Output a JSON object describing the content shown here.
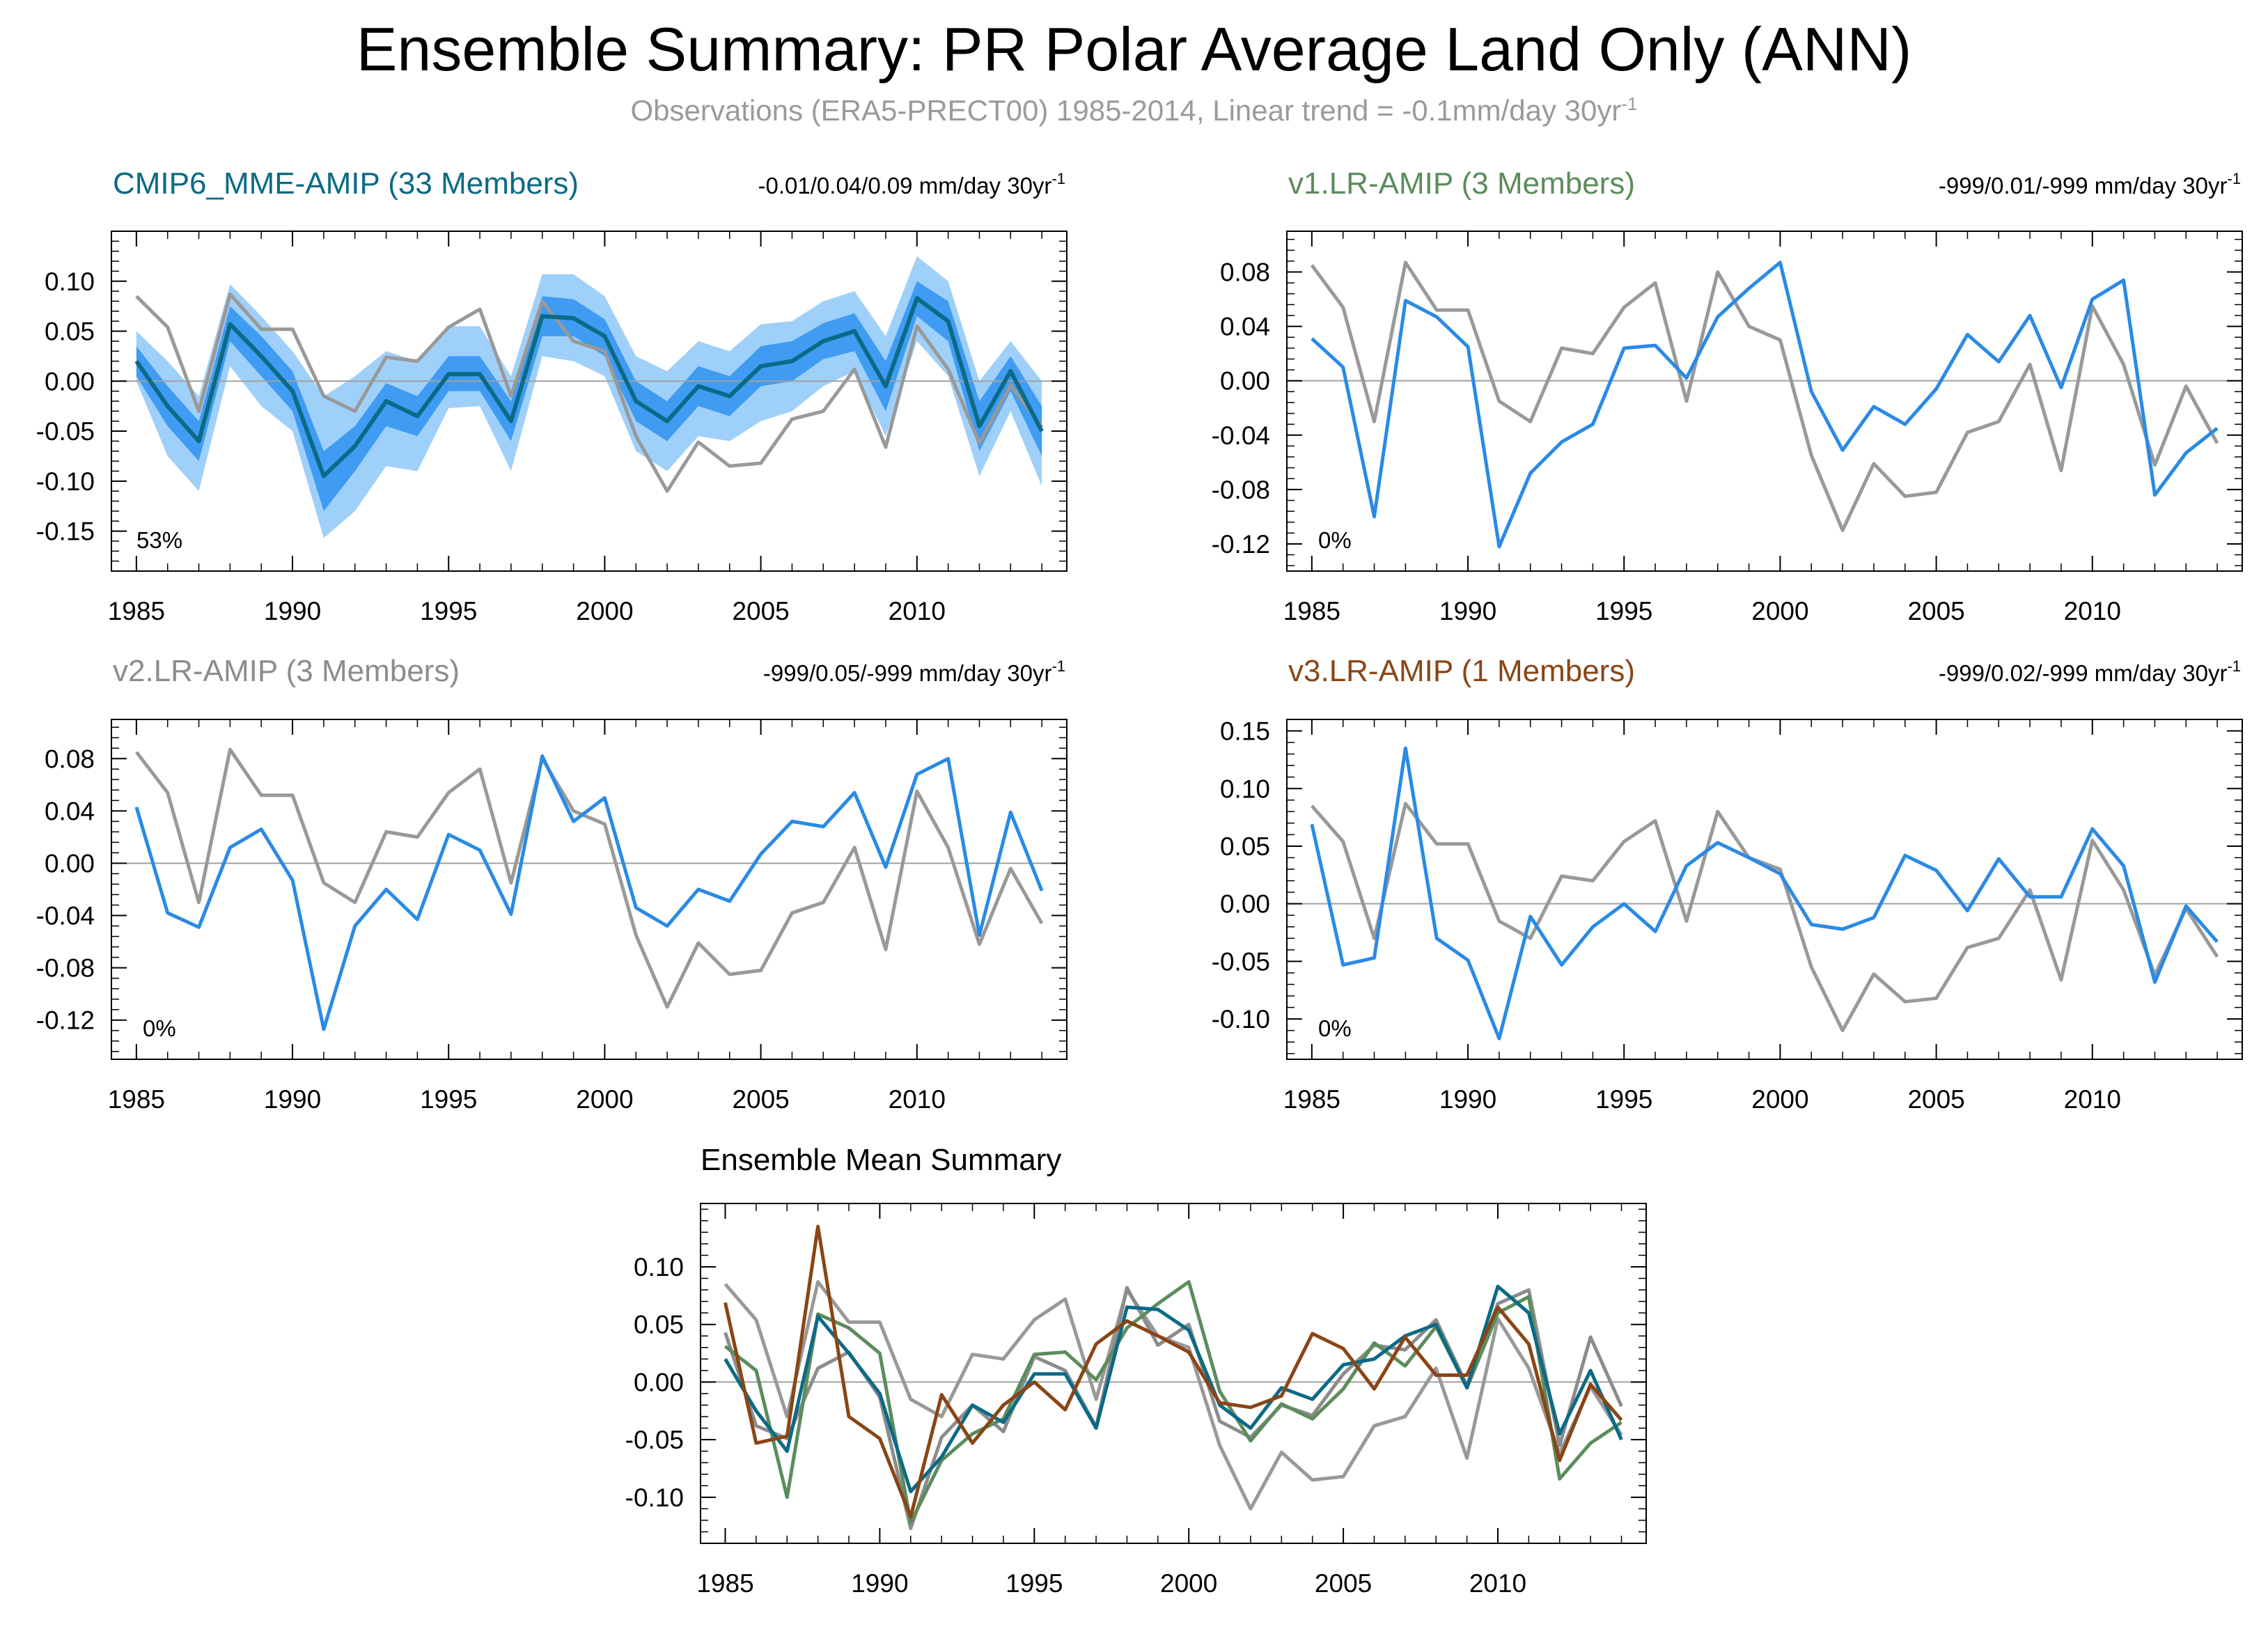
{
  "title": "Ensemble Summary: PR Polar Average Land Only (ANN)",
  "subtitle": {
    "text": "Observations (ERA5-PRECT00) 1985-2014, Linear trend = -0.1mm/day 30yr",
    "sup": "-1"
  },
  "colors": {
    "obs": "#999999",
    "model_line": "#2a8ae6",
    "band_outer": "#9fd0fa",
    "band_inner": "#3f9cf2",
    "cmip6": "#0b6a86",
    "v1": "#5c8c5c",
    "v2": "#8c8c8c",
    "v3": "#8a4515"
  },
  "years": [
    1985,
    1986,
    1987,
    1988,
    1989,
    1990,
    1991,
    1992,
    1993,
    1994,
    1995,
    1996,
    1997,
    1998,
    1999,
    2000,
    2001,
    2002,
    2003,
    2004,
    2005,
    2006,
    2007,
    2008,
    2009,
    2010,
    2011,
    2012,
    2013,
    2014
  ],
  "chart_data": [
    {
      "type": "line",
      "title": "CMIP6_MME-AMIP (33 Members)",
      "trend": "-0.01/0.04/0.09 mm/day 30yr",
      "trend_sup": "-1",
      "percent": "53%",
      "ylim": [
        -0.19,
        0.15
      ],
      "yticks": [
        "0.10",
        "0.05",
        "0.00",
        "-0.05",
        "-0.10",
        "-0.15"
      ],
      "xticks": [
        "1985",
        "1990",
        "1995",
        "2000",
        "2005",
        "2010"
      ],
      "series": [
        {
          "name": "ERA5-PRECT00",
          "values": [
            0.085,
            0.054,
            -0.03,
            0.087,
            0.052,
            0.052,
            -0.015,
            -0.03,
            0.024,
            0.02,
            0.054,
            0.072,
            -0.015,
            0.08,
            0.04,
            0.03,
            -0.055,
            -0.11,
            -0.061,
            -0.085,
            -0.082,
            -0.038,
            -0.03,
            0.012,
            -0.066,
            0.055,
            0.012,
            -0.062,
            -0.004,
            -0.046
          ]
        },
        {
          "name": "ensemble mean",
          "values": [
            0.02,
            -0.025,
            -0.06,
            0.057,
            0.025,
            -0.01,
            -0.095,
            -0.065,
            -0.02,
            -0.035,
            0.007,
            0.007,
            -0.04,
            0.065,
            0.063,
            0.045,
            -0.02,
            -0.04,
            -0.005,
            -0.015,
            0.015,
            0.02,
            0.04,
            0.05,
            -0.005,
            0.083,
            0.06,
            -0.045,
            0.01,
            -0.05
          ]
        }
      ],
      "band_outer": {
        "upper": [
          0.05,
          0.02,
          -0.015,
          0.097,
          0.065,
          0.03,
          -0.015,
          0.005,
          0.03,
          0.02,
          0.055,
          0.055,
          0.005,
          0.107,
          0.107,
          0.085,
          0.025,
          0.01,
          0.04,
          0.03,
          0.057,
          0.06,
          0.08,
          0.09,
          0.045,
          0.125,
          0.1,
          0.0,
          0.04,
          0.0
        ],
        "lower": [
          0.0,
          -0.075,
          -0.11,
          0.015,
          -0.025,
          -0.05,
          -0.157,
          -0.13,
          -0.085,
          -0.09,
          -0.027,
          -0.025,
          -0.09,
          0.025,
          0.02,
          0.005,
          -0.07,
          -0.09,
          -0.055,
          -0.06,
          -0.04,
          -0.03,
          -0.005,
          0.01,
          -0.055,
          0.04,
          0.005,
          -0.095,
          -0.03,
          -0.105
        ]
      },
      "band_inner": {
        "upper": [
          0.035,
          -0.005,
          -0.04,
          0.075,
          0.045,
          0.01,
          -0.07,
          -0.045,
          -0.002,
          -0.015,
          0.025,
          0.025,
          -0.02,
          0.085,
          0.082,
          0.062,
          0.0,
          -0.02,
          0.015,
          0.005,
          0.035,
          0.04,
          0.058,
          0.068,
          0.02,
          0.1,
          0.08,
          -0.02,
          0.025,
          -0.025
        ],
        "lower": [
          0.005,
          -0.045,
          -0.08,
          0.04,
          0.005,
          -0.03,
          -0.13,
          -0.09,
          -0.045,
          -0.055,
          -0.01,
          -0.01,
          -0.06,
          0.045,
          0.045,
          0.025,
          -0.04,
          -0.06,
          -0.025,
          -0.035,
          -0.005,
          0.0,
          0.022,
          0.03,
          -0.03,
          0.065,
          0.04,
          -0.07,
          -0.01,
          -0.075
        ]
      },
      "subtitle_color": "cmip6"
    },
    {
      "type": "line",
      "title": "v1.LR-AMIP (3 Members)",
      "trend": "-999/0.01/-999 mm/day 30yr",
      "trend_sup": "-1",
      "percent": "0%",
      "ylim": [
        -0.14,
        0.11
      ],
      "yticks": [
        "0.08",
        "0.04",
        "0.00",
        "-0.04",
        "-0.08",
        "-0.12"
      ],
      "xticks": [
        "1985",
        "1990",
        "1995",
        "2000",
        "2005",
        "2010"
      ],
      "series": [
        {
          "name": "ERA5-PRECT00",
          "values": [
            0.085,
            0.054,
            -0.03,
            0.087,
            0.052,
            0.052,
            -0.015,
            -0.03,
            0.024,
            0.02,
            0.054,
            0.072,
            -0.015,
            0.08,
            0.04,
            0.03,
            -0.055,
            -0.11,
            -0.061,
            -0.085,
            -0.082,
            -0.038,
            -0.03,
            0.012,
            -0.066,
            0.055,
            0.012,
            -0.062,
            -0.004,
            -0.046
          ]
        },
        {
          "name": "v1.LR-AMIP",
          "values": [
            0.031,
            0.01,
            -0.1,
            0.059,
            0.047,
            0.025,
            -0.122,
            -0.068,
            -0.045,
            -0.032,
            0.024,
            0.026,
            0.002,
            0.047,
            0.068,
            0.087,
            -0.008,
            -0.051,
            -0.019,
            -0.032,
            -0.006,
            0.034,
            0.014,
            0.048,
            -0.005,
            0.06,
            0.074,
            -0.084,
            -0.053,
            -0.035
          ]
        }
      ],
      "subtitle_color": "v1"
    },
    {
      "type": "line",
      "title": "v2.LR-AMIP (3 Members)",
      "trend": "-999/0.05/-999 mm/day 30yr",
      "trend_sup": "-1",
      "percent": "0%",
      "ylim": [
        -0.15,
        0.11
      ],
      "yticks": [
        "0.08",
        "0.04",
        "0.00",
        "-0.04",
        "-0.08",
        "-0.12"
      ],
      "xticks": [
        "1985",
        "1990",
        "1995",
        "2000",
        "2005",
        "2010"
      ],
      "series": [
        {
          "name": "ERA5-PRECT00",
          "values": [
            0.085,
            0.054,
            -0.03,
            0.087,
            0.052,
            0.052,
            -0.015,
            -0.03,
            0.024,
            0.02,
            0.054,
            0.072,
            -0.015,
            0.08,
            0.04,
            0.03,
            -0.055,
            -0.11,
            -0.061,
            -0.085,
            -0.082,
            -0.038,
            -0.03,
            0.012,
            -0.066,
            0.055,
            0.012,
            -0.062,
            -0.004,
            -0.046
          ]
        },
        {
          "name": "v2.LR-AMIP",
          "values": [
            0.043,
            -0.038,
            -0.049,
            0.012,
            0.026,
            -0.013,
            -0.127,
            -0.048,
            -0.02,
            -0.043,
            0.022,
            0.01,
            -0.039,
            0.082,
            0.032,
            0.05,
            -0.034,
            -0.048,
            -0.02,
            -0.029,
            0.007,
            0.032,
            0.028,
            0.054,
            -0.003,
            0.068,
            0.08,
            -0.055,
            0.039,
            -0.021
          ]
        }
      ],
      "subtitle_color": "v2"
    },
    {
      "type": "line",
      "title": "v3.LR-AMIP (1 Members)",
      "trend": "-999/0.02/-999 mm/day 30yr",
      "trend_sup": "-1",
      "percent": "0%",
      "ylim": [
        -0.135,
        0.16
      ],
      "yticks": [
        "0.15",
        "0.10",
        "0.05",
        "0.00",
        "-0.05",
        "-0.10"
      ],
      "xticks": [
        "1985",
        "1990",
        "1995",
        "2000",
        "2005",
        "2010"
      ],
      "series": [
        {
          "name": "ERA5-PRECT00",
          "values": [
            0.085,
            0.054,
            -0.03,
            0.087,
            0.052,
            0.052,
            -0.015,
            -0.03,
            0.024,
            0.02,
            0.054,
            0.072,
            -0.015,
            0.08,
            0.04,
            0.03,
            -0.055,
            -0.11,
            -0.061,
            -0.085,
            -0.082,
            -0.038,
            -0.03,
            0.012,
            -0.066,
            0.055,
            0.012,
            -0.062,
            -0.004,
            -0.046
          ]
        },
        {
          "name": "v3.LR-AMIP",
          "values": [
            0.069,
            -0.053,
            -0.047,
            0.135,
            -0.03,
            -0.049,
            -0.117,
            -0.011,
            -0.053,
            -0.02,
            0.0,
            -0.024,
            0.033,
            0.053,
            0.04,
            0.026,
            -0.018,
            -0.022,
            -0.012,
            0.042,
            0.029,
            -0.006,
            0.039,
            0.006,
            0.006,
            0.065,
            0.033,
            -0.068,
            -0.002,
            -0.033
          ]
        }
      ],
      "subtitle_color": "v3"
    },
    {
      "type": "line",
      "title": "Ensemble Mean Summary",
      "ylim": [
        -0.14,
        0.155
      ],
      "yticks": [
        "0.10",
        "0.05",
        "0.00",
        "-0.05",
        "-0.10"
      ],
      "xticks": [
        "1985",
        "1990",
        "1995",
        "2000",
        "2005",
        "2010"
      ],
      "series": [
        {
          "name": "ERA5-PRECT00",
          "values": [
            0.085,
            0.054,
            -0.03,
            0.087,
            0.052,
            0.052,
            -0.015,
            -0.03,
            0.024,
            0.02,
            0.054,
            0.072,
            -0.015,
            0.08,
            0.04,
            0.03,
            -0.055,
            -0.11,
            -0.061,
            -0.085,
            -0.082,
            -0.038,
            -0.03,
            0.012,
            -0.066,
            0.055,
            0.012,
            -0.062,
            -0.004,
            -0.046
          ]
        },
        {
          "name": "v2.LR-AMIP",
          "values": [
            0.043,
            -0.038,
            -0.049,
            0.012,
            0.026,
            -0.013,
            -0.127,
            -0.048,
            -0.02,
            -0.043,
            0.022,
            0.01,
            -0.039,
            0.082,
            0.032,
            0.05,
            -0.034,
            -0.048,
            -0.02,
            -0.029,
            0.007,
            0.032,
            0.028,
            0.054,
            -0.003,
            0.068,
            0.08,
            -0.055,
            0.039,
            -0.021
          ]
        },
        {
          "name": "v1.LR-AMIP",
          "values": [
            0.031,
            0.01,
            -0.1,
            0.059,
            0.047,
            0.025,
            -0.122,
            -0.068,
            -0.045,
            -0.032,
            0.024,
            0.026,
            0.002,
            0.047,
            0.068,
            0.087,
            -0.008,
            -0.051,
            -0.019,
            -0.032,
            -0.006,
            0.034,
            0.014,
            0.048,
            -0.005,
            0.06,
            0.074,
            -0.084,
            -0.053,
            -0.035
          ]
        },
        {
          "name": "CMIP6_MME-AMIP",
          "values": [
            0.02,
            -0.025,
            -0.06,
            0.057,
            0.025,
            -0.01,
            -0.095,
            -0.065,
            -0.02,
            -0.035,
            0.007,
            0.007,
            -0.04,
            0.065,
            0.063,
            0.045,
            -0.02,
            -0.04,
            -0.005,
            -0.015,
            0.015,
            0.02,
            0.04,
            0.05,
            -0.005,
            0.083,
            0.06,
            -0.045,
            0.01,
            -0.05
          ]
        },
        {
          "name": "v3.LR-AMIP",
          "values": [
            0.069,
            -0.053,
            -0.047,
            0.135,
            -0.03,
            -0.049,
            -0.117,
            -0.011,
            -0.053,
            -0.02,
            0.0,
            -0.024,
            0.033,
            0.053,
            0.04,
            0.026,
            -0.018,
            -0.022,
            -0.012,
            0.042,
            0.029,
            -0.006,
            0.039,
            0.006,
            0.006,
            0.065,
            0.033,
            -0.068,
            -0.002,
            -0.033
          ]
        }
      ],
      "series_colors": [
        "obs",
        "v2",
        "v1",
        "cmip6",
        "v3"
      ]
    }
  ]
}
